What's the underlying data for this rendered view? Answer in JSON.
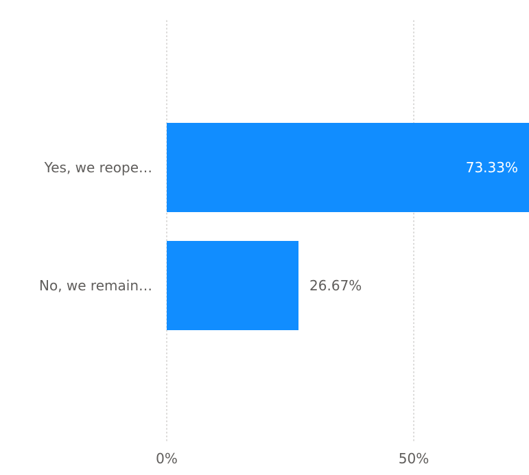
{
  "chart_data": {
    "type": "bar",
    "orientation": "horizontal",
    "categories": [
      "Yes, we reope…",
      "No, we remain…"
    ],
    "values": [
      73.33,
      26.67
    ],
    "value_labels": [
      "73.33%",
      "26.67%"
    ],
    "xlim": [
      0,
      73.33
    ],
    "x_ticks": [
      0,
      50
    ],
    "x_tick_labels": [
      "0%",
      "50%"
    ],
    "grid": "vertical dotted",
    "legend": "none",
    "colors": {
      "bar": "#118DFF",
      "label_inside": "#FFFFFF",
      "label_outside": "#605E5C",
      "axis_text": "#605E5C",
      "grid": "#C8C6C4"
    }
  }
}
